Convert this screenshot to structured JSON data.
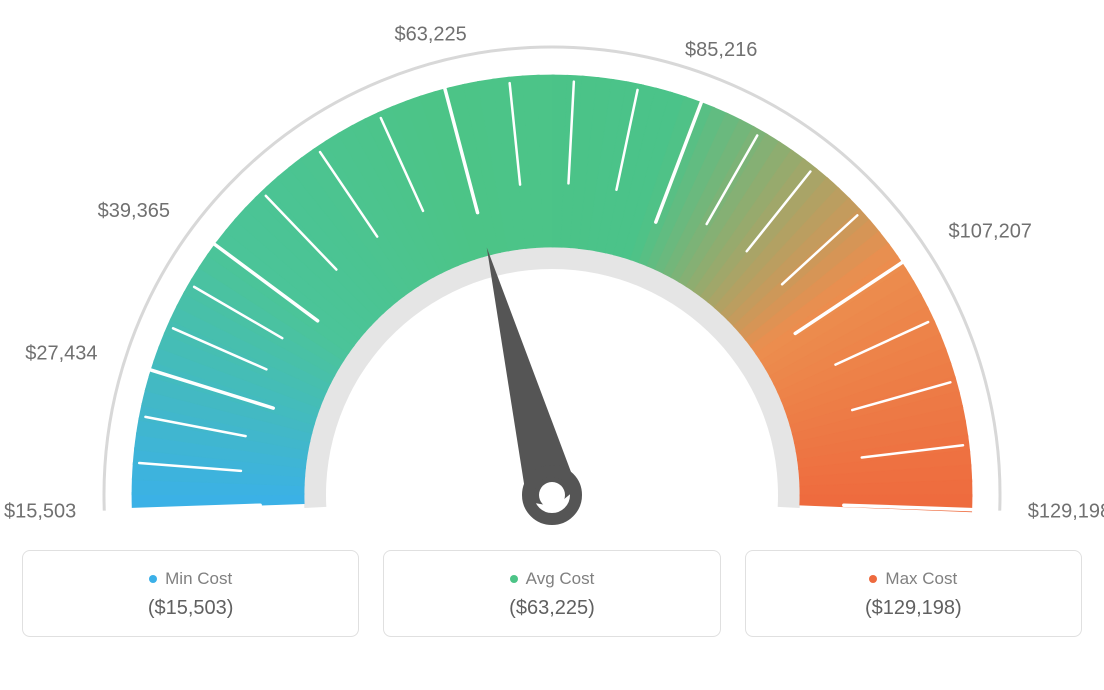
{
  "gauge": {
    "type": "gauge",
    "min_value": 15503,
    "max_value": 129198,
    "current_value": 63225,
    "tick_values": [
      15503,
      27434,
      39365,
      63225,
      85216,
      107207,
      129198
    ],
    "tick_labels": [
      "$15,503",
      "$27,434",
      "$39,365",
      "$63,225",
      "$85,216",
      "$107,207",
      "$129,198"
    ],
    "major_tick_count": 7,
    "minor_ticks_per_major": 2,
    "colors": {
      "arc_gradient_stops": [
        "#3bb0e8",
        "#4bc49a",
        "#4cc487",
        "#4bc389",
        "#ec8e4e",
        "#ee6a3e"
      ],
      "outer_arc": "#d8d8d8",
      "inner_arc": "#e5e5e5",
      "tick_color": "#ffffff",
      "label_color": "#707070",
      "needle_color": "#555555",
      "needle_hub_inner": "#ffffff",
      "background": "#ffffff"
    },
    "arc_outer_radius": 420,
    "arc_inner_radius": 248,
    "label_fontsize": 20
  },
  "summary": {
    "cards": [
      {
        "key": "min",
        "label": "Min Cost",
        "value": "($15,503)",
        "dot_color": "#3bb0e8"
      },
      {
        "key": "avg",
        "label": "Avg Cost",
        "value": "($63,225)",
        "dot_color": "#4cc487"
      },
      {
        "key": "max",
        "label": "Max Cost",
        "value": "($129,198)",
        "dot_color": "#ee6a3e"
      }
    ],
    "card_border_color": "#e0e0e0",
    "card_border_radius": 8,
    "label_color": "#808080",
    "value_color": "#606060"
  }
}
